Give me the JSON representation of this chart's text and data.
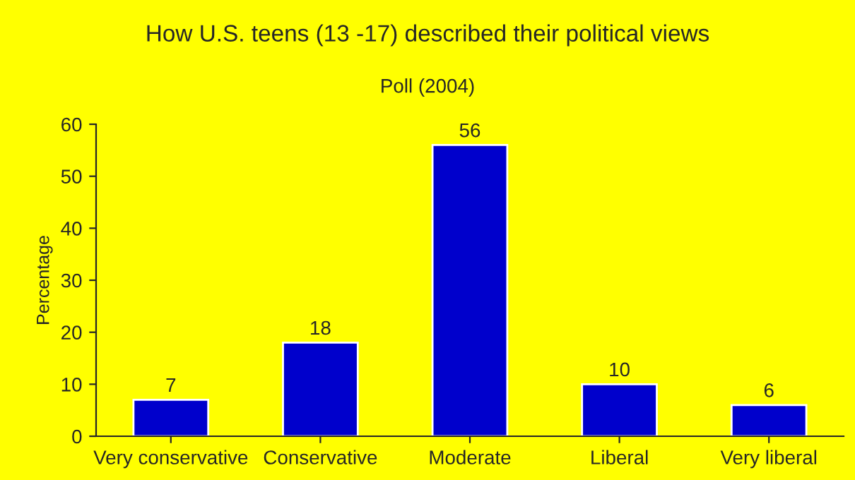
{
  "chart_data": {
    "type": "bar",
    "title": "How U.S. teens (13 -17) described their political views",
    "subtitle": "Poll (2004)",
    "ylabel": "Percentage",
    "categories": [
      "Very conservative",
      "Conservative",
      "Moderate",
      "Liberal",
      "Very liberal"
    ],
    "values": [
      7,
      18,
      56,
      10,
      6
    ],
    "color": "#0000cc",
    "ylim": [
      0,
      60
    ],
    "yticks": [
      0,
      10,
      20,
      30,
      40,
      50,
      60
    ],
    "grid": false,
    "data_labels": true
  }
}
